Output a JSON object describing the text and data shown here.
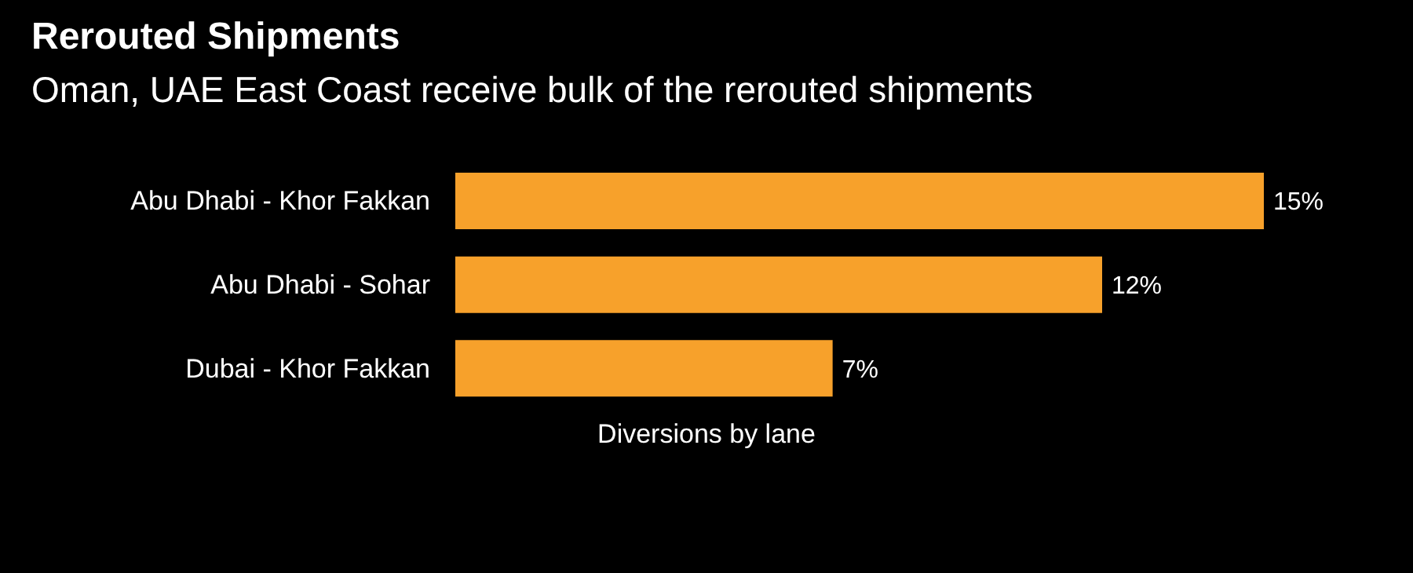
{
  "chart_data": {
    "type": "bar",
    "orientation": "horizontal",
    "title": "Rerouted Shipments",
    "subtitle": "Oman, UAE East Coast receive bulk of the rerouted shipments",
    "xlabel": "Diversions by lane",
    "categories": [
      "Abu Dhabi - Khor Fakkan",
      "Abu Dhabi - Sohar",
      "Dubai - Khor Fakkan"
    ],
    "values": [
      15,
      12,
      7
    ],
    "value_labels": [
      "15%",
      "12%",
      "7%"
    ],
    "color": "#f7a12b"
  }
}
